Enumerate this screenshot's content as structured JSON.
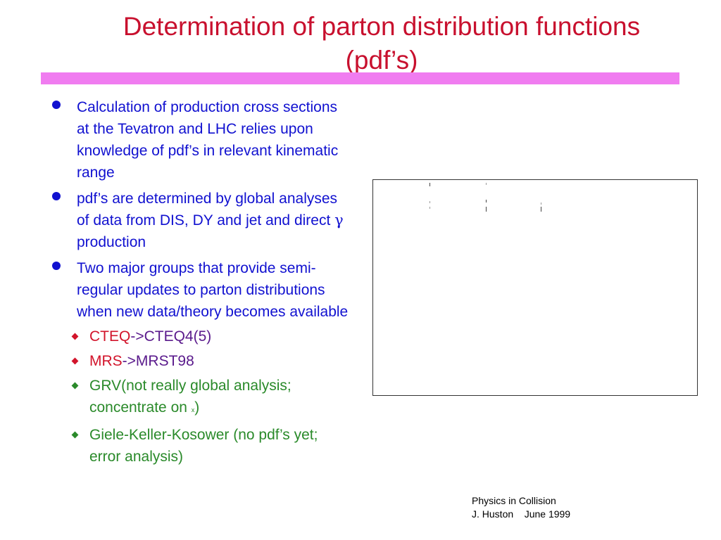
{
  "title": {
    "line1": "Determination of  parton distribution functions",
    "line2": "(pdf’s)"
  },
  "colors": {
    "title": "#c8102e",
    "rule": "#f07cf0",
    "bullet_text": "#1111d0",
    "red": "#d2142b",
    "purple": "#5a1a8c",
    "green": "#2a8a2a"
  },
  "bullets": [
    {
      "text": "Calculation of production cross sections at the Tevatron and LHC relies upon knowledge of pdf’s in relevant kinematic range"
    },
    {
      "text_before": "pdf’s  are determined by global analyses of data from DIS, DY and jet and direct ",
      "symbol": "γ",
      "text_after": " production"
    },
    {
      "text": "Two major groups  that provide semi-regular updates to parton distributions when new data/theory becomes available"
    }
  ],
  "subbullets": {
    "cteq": {
      "a": "CTEQ",
      "b": "->CTEQ4(5)"
    },
    "mrs": {
      "a": "MRS",
      "b": "->MRST98"
    },
    "grv": {
      "a": "GRV(not really global analysis; concentrate on ",
      "tiny": "x",
      "b": ")"
    },
    "gkk": {
      "text": "Giele-Keller-Kosower (no pdf’s yet; error analysis)"
    }
  },
  "footer": {
    "line1": "Physics in Collision",
    "line2": "J. Huston    June 1999"
  }
}
